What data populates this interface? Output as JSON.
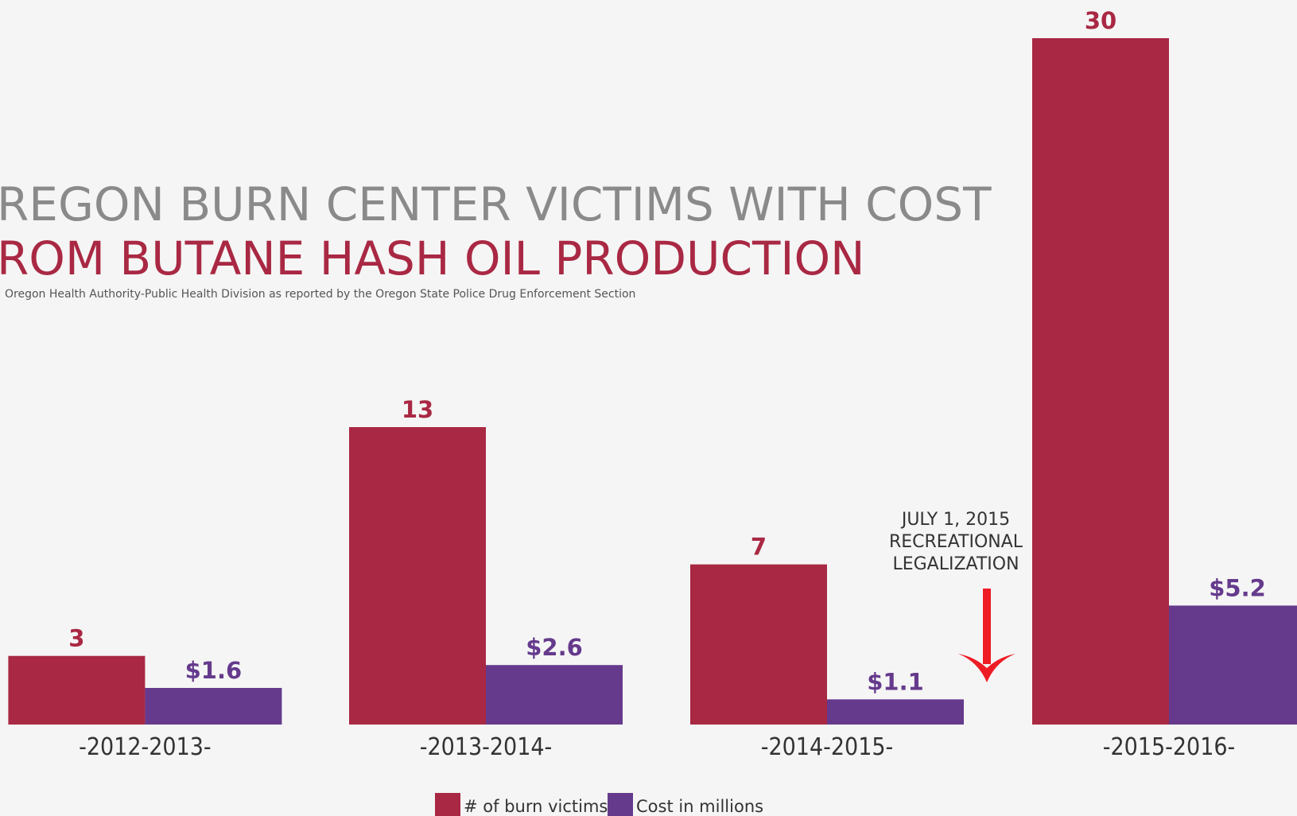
{
  "chart_data": {
    "type": "bar",
    "title": "REGON BURN CENTER VICTIMS WITH COST",
    "subtitle": "ROM BUTANE HASH OIL PRODUCTION",
    "source": "Oregon Health Authority-Public Health Division as reported by the Oregon State Police Drug Enforcement Section",
    "categories": [
      "-2012-2013-",
      "-2013-2014-",
      "-2014-2015-",
      "-2015-2016-"
    ],
    "series": [
      {
        "name": "# of burn victims",
        "color": "#a92843",
        "values": [
          3,
          13,
          7,
          30
        ]
      },
      {
        "name": "Cost in millions",
        "color": "#653a8c",
        "values": [
          1.6,
          2.6,
          1.1,
          5.2
        ],
        "value_labels": [
          "$1.6",
          "$2.6",
          "$1.1",
          "$5.2"
        ]
      }
    ],
    "ylim": [
      0,
      30
    ],
    "annotation": [
      "JULY 1, 2015",
      "RECREATIONAL",
      "LEGALIZATION"
    ],
    "annotation_color": "#ee1c25"
  }
}
